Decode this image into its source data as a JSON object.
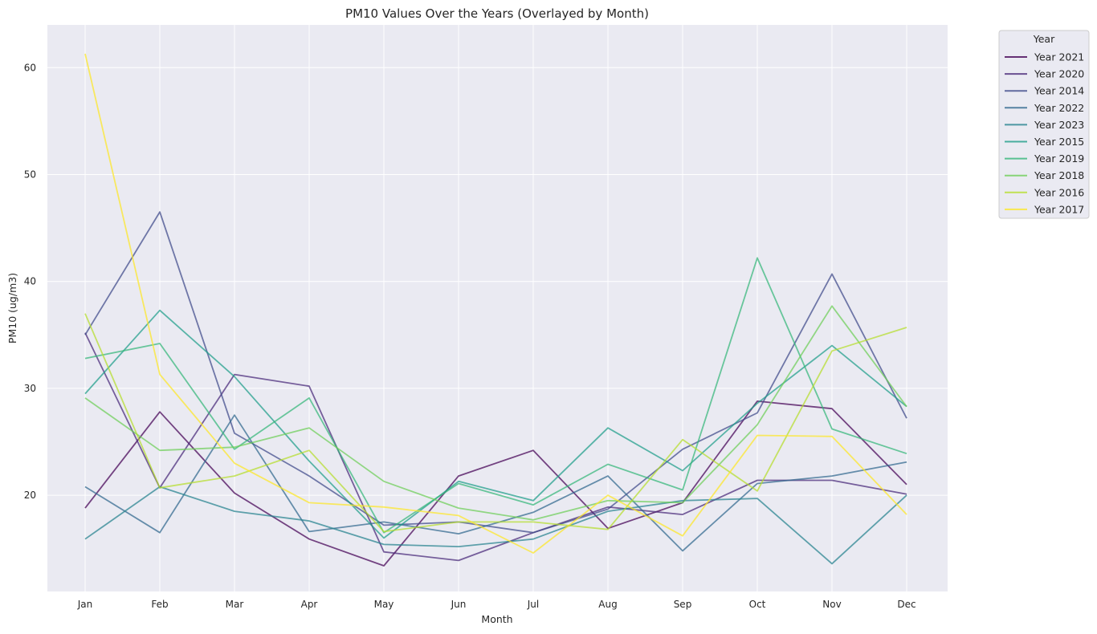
{
  "chart_data": {
    "type": "line",
    "title": "PM10 Values Over the Years (Overlayed by Month)",
    "xlabel": "Month",
    "ylabel": "PM10 (ug/m3)",
    "categories": [
      "Jan",
      "Feb",
      "Mar",
      "Apr",
      "May",
      "Jun",
      "Jul",
      "Aug",
      "Sep",
      "Oct",
      "Nov",
      "Dec"
    ],
    "ylim": [
      11,
      64
    ],
    "yticks": [
      20,
      30,
      40,
      50,
      60
    ],
    "grid": true,
    "legend_title": "Year",
    "legend_position": "outside-top-right",
    "series": [
      {
        "name": "Year 2021",
        "color": "#440154",
        "values": [
          18.8,
          27.8,
          20.2,
          15.9,
          13.4,
          21.8,
          24.2,
          16.9,
          19.3,
          28.8,
          28.1,
          21.0
        ]
      },
      {
        "name": "Year 2020",
        "color": "#482878",
        "values": [
          35.2,
          20.7,
          31.3,
          30.2,
          14.7,
          13.9,
          16.5,
          18.9,
          18.2,
          21.4,
          21.4,
          20.1
        ]
      },
      {
        "name": "Year 2014",
        "color": "#3e4a89",
        "values": [
          35.0,
          46.5,
          25.8,
          21.8,
          17.2,
          17.5,
          16.5,
          18.7,
          24.3,
          27.7,
          40.7,
          27.2
        ]
      },
      {
        "name": "Year 2022",
        "color": "#31688e",
        "values": [
          20.8,
          16.5,
          27.5,
          16.6,
          17.5,
          16.4,
          18.4,
          21.8,
          14.8,
          21.1,
          21.8,
          23.1
        ]
      },
      {
        "name": "Year 2023",
        "color": "#26828e",
        "values": [
          15.9,
          20.8,
          18.5,
          17.6,
          15.4,
          15.2,
          15.9,
          18.5,
          19.5,
          19.7,
          13.6,
          20.0
        ]
      },
      {
        "name": "Year 2015",
        "color": "#1f9e89",
        "values": [
          29.5,
          37.3,
          31.1,
          23.2,
          16.0,
          21.3,
          19.5,
          26.3,
          22.3,
          28.6,
          34.0,
          28.3
        ]
      },
      {
        "name": "Year 2019",
        "color": "#35b779",
        "values": [
          32.8,
          34.2,
          24.3,
          29.1,
          16.5,
          21.1,
          19.1,
          22.9,
          20.5,
          42.2,
          26.2,
          23.9
        ]
      },
      {
        "name": "Year 2018",
        "color": "#6ece58",
        "values": [
          29.1,
          24.2,
          24.5,
          26.3,
          21.3,
          18.8,
          17.7,
          19.5,
          19.3,
          26.6,
          37.7,
          28.3
        ]
      },
      {
        "name": "Year 2016",
        "color": "#b5de2b",
        "values": [
          37.0,
          20.7,
          21.8,
          24.2,
          16.6,
          17.5,
          17.5,
          16.8,
          25.2,
          20.4,
          33.5,
          35.7
        ]
      },
      {
        "name": "Year 2017",
        "color": "#fde725",
        "values": [
          61.3,
          31.3,
          23.0,
          19.3,
          18.9,
          18.1,
          14.6,
          20.0,
          16.2,
          25.6,
          25.5,
          18.2
        ]
      }
    ]
  }
}
